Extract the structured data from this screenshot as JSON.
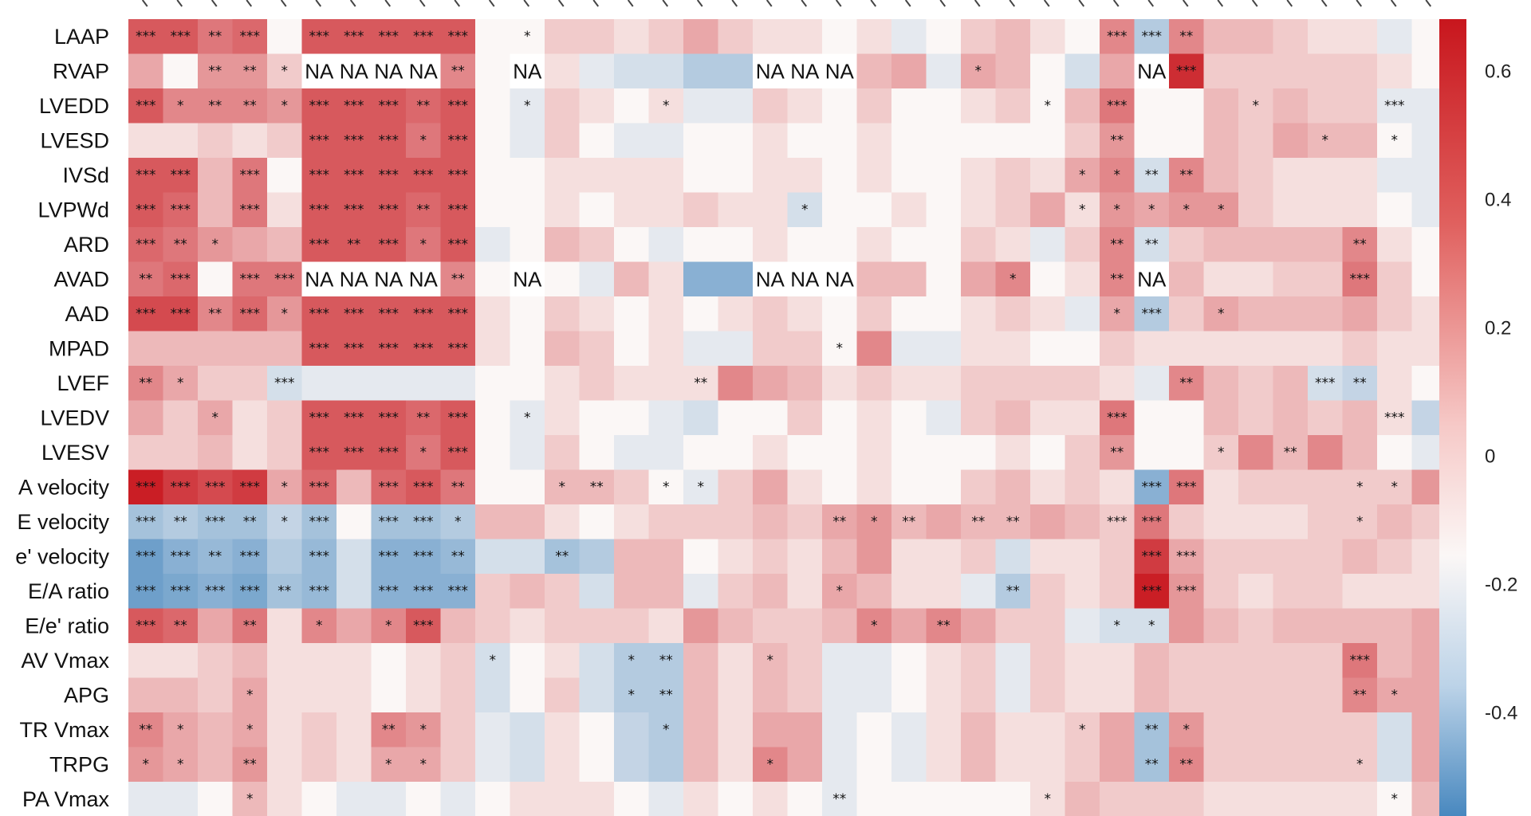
{
  "chart_data": {
    "type": "heatmap",
    "rows": [
      "LAAP",
      "RVAP",
      "LVEDD",
      "LVESD",
      "IVSd",
      "LVPWd",
      "ARD",
      "AVAD",
      "AAD",
      "MPAD",
      "LVEF",
      "LVEDV",
      "LVESV",
      "A velocity",
      "E velocity",
      "e' velocity",
      "E/A ratio",
      "E/e' ratio",
      "AV Vmax",
      "APG",
      "TR Vmax",
      "TRPG",
      "PA Vmax"
    ],
    "n_cols": 38,
    "values": [
      [
        0.45,
        0.45,
        0.35,
        0.4,
        0,
        0.45,
        0.45,
        0.45,
        0.45,
        0.45,
        0,
        0,
        0.1,
        0.1,
        0.05,
        0.1,
        0.2,
        0.1,
        0.05,
        0.05,
        0,
        0.05,
        -0.05,
        0,
        0.1,
        0.15,
        0.05,
        0,
        0.3,
        -0.2,
        0.3,
        0.15,
        0.15,
        0.1,
        0.05,
        0.05,
        -0.05,
        0
      ],
      [
        0.2,
        0,
        0.25,
        0.25,
        0.1,
        0,
        0,
        0,
        0,
        0.3,
        0,
        0,
        0.05,
        -0.05,
        -0.1,
        -0.1,
        -0.2,
        -0.2,
        0,
        0,
        0,
        0.15,
        0.2,
        -0.05,
        0.2,
        0.15,
        0,
        -0.1,
        0.2,
        0,
        0.6,
        0.1,
        0.1,
        0.1,
        0.1,
        0.1,
        0.05,
        0
      ],
      [
        0.45,
        0.3,
        0.3,
        0.3,
        0.25,
        0.45,
        0.45,
        0.45,
        0.4,
        0.45,
        0,
        -0.05,
        0.1,
        0.05,
        0,
        0.05,
        -0.05,
        -0.05,
        0.1,
        0.05,
        0,
        0.1,
        0,
        0,
        0.05,
        0.1,
        0,
        0.15,
        0.35,
        0,
        0,
        0.15,
        0.1,
        0.15,
        0.1,
        0.1,
        -0.05,
        -0.05
      ],
      [
        0.05,
        0.05,
        0.1,
        0.05,
        0.1,
        0.45,
        0.45,
        0.45,
        0.35,
        0.45,
        0,
        -0.05,
        0.1,
        0,
        -0.05,
        -0.05,
        0,
        0,
        0.05,
        0,
        0,
        0.05,
        0,
        0,
        0,
        0,
        0,
        0.1,
        0.25,
        0,
        0,
        0.15,
        0.1,
        0.2,
        0.15,
        0.15,
        0,
        -0.05
      ],
      [
        0.45,
        0.45,
        0.15,
        0.35,
        0,
        0.45,
        0.45,
        0.45,
        0.45,
        0.45,
        0,
        0,
        0.05,
        0.05,
        0.05,
        0.05,
        0,
        0,
        0.05,
        0.05,
        0,
        0.05,
        0,
        0,
        0.05,
        0.1,
        0.05,
        0.2,
        0.3,
        -0.1,
        0.3,
        0.15,
        0.1,
        0.05,
        0.05,
        0.05,
        -0.05,
        -0.05
      ],
      [
        0.45,
        0.4,
        0.15,
        0.35,
        0.05,
        0.45,
        0.45,
        0.45,
        0.4,
        0.45,
        0,
        0,
        0.05,
        0,
        0.05,
        0.05,
        0.1,
        0.05,
        0.05,
        -0.1,
        0,
        0,
        0.05,
        0,
        0.05,
        0.1,
        0.2,
        0.05,
        0.25,
        0.2,
        0.25,
        0.25,
        0.1,
        0.05,
        0.05,
        0.05,
        0,
        -0.05
      ],
      [
        0.4,
        0.35,
        0.25,
        0.2,
        0.15,
        0.45,
        0.45,
        0.45,
        0.35,
        0.45,
        -0.05,
        0,
        0.15,
        0.1,
        0,
        -0.05,
        0,
        0,
        0.05,
        0,
        0,
        0.05,
        0,
        0,
        0.1,
        0.05,
        -0.05,
        0.1,
        0.3,
        -0.1,
        0.1,
        0.15,
        0.15,
        0.15,
        0.15,
        0.3,
        0.05,
        0
      ],
      [
        0.35,
        0.4,
        0,
        0.35,
        0.35,
        0,
        0,
        0,
        0,
        0.3,
        0,
        0,
        0,
        -0.05,
        0.15,
        0.05,
        -0.35,
        -0.35,
        0,
        0,
        0,
        0.15,
        0.15,
        0,
        0.2,
        0.3,
        0,
        0.05,
        0.3,
        0,
        0.15,
        0.05,
        0.05,
        0.1,
        0.1,
        0.35,
        0.1,
        0
      ],
      [
        0.5,
        0.5,
        0.3,
        0.4,
        0.25,
        0.45,
        0.45,
        0.45,
        0.45,
        0.45,
        0.05,
        0,
        0.1,
        0.05,
        0,
        0.05,
        0,
        0.05,
        0.1,
        0.05,
        0,
        0.1,
        0,
        0,
        0.05,
        0.1,
        0.05,
        -0.05,
        0.2,
        -0.2,
        0.1,
        0.2,
        0.15,
        0.15,
        0.15,
        0.2,
        0.1,
        0.05
      ],
      [
        0.15,
        0.15,
        0.15,
        0.15,
        0.15,
        0.45,
        0.45,
        0.45,
        0.45,
        0.45,
        0.05,
        0,
        0.15,
        0.1,
        0,
        0.05,
        -0.05,
        -0.05,
        0.1,
        0.1,
        0,
        0.3,
        -0.05,
        -0.05,
        0.05,
        0.05,
        0,
        0,
        0.1,
        0.05,
        0.05,
        0.05,
        0.05,
        0.05,
        0.05,
        0.1,
        0.05,
        0.05
      ],
      [
        0.3,
        0.2,
        0.1,
        0.1,
        -0.1,
        -0.05,
        -0.05,
        -0.05,
        -0.05,
        -0.05,
        0,
        0,
        0.05,
        0.1,
        0.05,
        0.05,
        0.05,
        0.3,
        0.2,
        0.15,
        0.05,
        0.1,
        0.05,
        0.05,
        0.1,
        0.1,
        0.1,
        0.1,
        0.05,
        -0.05,
        0.3,
        0.15,
        0.1,
        0.15,
        -0.1,
        -0.15,
        0.05,
        0
      ],
      [
        0.2,
        0.1,
        0.2,
        0.05,
        0.1,
        0.45,
        0.45,
        0.45,
        0.4,
        0.45,
        0,
        -0.05,
        0.05,
        0,
        0,
        -0.05,
        -0.1,
        0,
        0,
        0.1,
        0,
        0.05,
        0,
        -0.05,
        0.1,
        0.15,
        0.05,
        0.05,
        0.35,
        0,
        0,
        0.15,
        0.1,
        0.15,
        0.1,
        0.15,
        0.05,
        -0.15
      ],
      [
        0.1,
        0.1,
        0.15,
        0.05,
        0.1,
        0.45,
        0.45,
        0.45,
        0.35,
        0.45,
        0,
        -0.05,
        0.1,
        0,
        -0.05,
        -0.05,
        0,
        0,
        0.05,
        0,
        0,
        0.05,
        0,
        0,
        0,
        0.05,
        0,
        0.1,
        0.25,
        0,
        0,
        0.1,
        0.3,
        0.15,
        0.3,
        0.15,
        0,
        -0.05
      ],
      [
        0.65,
        0.55,
        0.5,
        0.55,
        0.2,
        0.4,
        0.15,
        0.4,
        0.45,
        0.35,
        0,
        0,
        0.15,
        0.15,
        0.1,
        0,
        -0.05,
        0.1,
        0.2,
        0.05,
        0,
        0.05,
        0,
        0,
        0.1,
        0.15,
        0.05,
        0.1,
        0.05,
        -0.35,
        0.35,
        0.05,
        0.1,
        0.1,
        0.1,
        0.1,
        0.1,
        0.25
      ],
      [
        -0.25,
        -0.2,
        -0.25,
        -0.25,
        -0.15,
        -0.25,
        0,
        -0.25,
        -0.25,
        -0.2,
        0.15,
        0.15,
        0.05,
        0,
        0.05,
        0.1,
        0.1,
        0.1,
        0.15,
        0.1,
        0.2,
        0.25,
        0.15,
        0.2,
        0.15,
        0.15,
        0.2,
        0.15,
        0.1,
        0.35,
        0.1,
        0.05,
        0.05,
        0.05,
        0.1,
        0.1,
        0.15,
        0.1
      ],
      [
        -0.45,
        -0.35,
        -0.3,
        -0.35,
        -0.2,
        -0.3,
        -0.1,
        -0.35,
        -0.35,
        -0.3,
        -0.1,
        -0.1,
        -0.25,
        -0.2,
        0.15,
        0.15,
        0,
        0.05,
        0.1,
        0.05,
        0.15,
        0.25,
        0.05,
        0.05,
        0.1,
        -0.1,
        0.05,
        0.05,
        0.1,
        0.55,
        0.2,
        0.1,
        0.1,
        0.1,
        0.1,
        0.15,
        0.1,
        0.05
      ],
      [
        -0.45,
        -0.4,
        -0.35,
        -0.4,
        -0.25,
        -0.3,
        -0.1,
        -0.35,
        -0.35,
        -0.35,
        0.1,
        0.15,
        0.1,
        -0.1,
        0.15,
        0.15,
        -0.05,
        0.1,
        0.15,
        0.05,
        0.2,
        0.15,
        0.05,
        0.05,
        -0.05,
        -0.2,
        0.1,
        0.05,
        0.1,
        0.65,
        0.25,
        0.1,
        0.05,
        0.1,
        0.1,
        0.05,
        0.05,
        0.05
      ],
      [
        0.45,
        0.4,
        0.2,
        0.35,
        0.05,
        0.3,
        0.2,
        0.3,
        0.45,
        0.15,
        0.1,
        0.05,
        0.1,
        0.1,
        0.1,
        0.05,
        0.25,
        0.15,
        0.1,
        0.1,
        0.15,
        0.3,
        0.2,
        0.3,
        0.2,
        0.1,
        0.1,
        -0.05,
        -0.1,
        -0.1,
        0.25,
        0.15,
        0.1,
        0.15,
        0.15,
        0.15,
        0.15,
        0.2
      ],
      [
        0.05,
        0.05,
        0.1,
        0.15,
        0.05,
        0.05,
        0.05,
        0,
        0.05,
        0.1,
        -0.1,
        0,
        0.05,
        -0.1,
        -0.2,
        -0.2,
        0.15,
        0.05,
        0.15,
        0.1,
        -0.05,
        -0.05,
        0,
        0.05,
        0.1,
        -0.05,
        0.1,
        0.05,
        0.05,
        0.15,
        0.1,
        0.1,
        0.1,
        0.1,
        0.1,
        0.35,
        0.15,
        0.2
      ],
      [
        0.15,
        0.15,
        0.1,
        0.2,
        0.05,
        0.05,
        0.05,
        0,
        0.05,
        0.1,
        -0.1,
        0,
        0.1,
        -0.1,
        -0.2,
        -0.2,
        0.15,
        0.05,
        0.15,
        0.1,
        -0.05,
        -0.05,
        0,
        0.05,
        0.1,
        -0.05,
        0.1,
        0.05,
        0.05,
        0.15,
        0.1,
        0.1,
        0.1,
        0.1,
        0.1,
        0.3,
        0.2,
        0.2
      ],
      [
        0.3,
        0.2,
        0.15,
        0.2,
        0.05,
        0.1,
        0.05,
        0.3,
        0.25,
        0.1,
        -0.05,
        -0.1,
        0.05,
        0,
        -0.15,
        -0.2,
        0.15,
        0.05,
        0.2,
        0.2,
        -0.05,
        0,
        -0.05,
        0.05,
        0.15,
        0.05,
        0.05,
        0.1,
        0.2,
        -0.25,
        0.25,
        0.1,
        0.1,
        0.1,
        0.1,
        0.1,
        -0.1,
        0.2
      ],
      [
        0.25,
        0.2,
        0.15,
        0.25,
        0.05,
        0.1,
        0.05,
        0.2,
        0.2,
        0.1,
        -0.05,
        -0.1,
        0.05,
        0,
        -0.15,
        -0.2,
        0.15,
        0.05,
        0.3,
        0.2,
        -0.05,
        0,
        -0.05,
        0.05,
        0.15,
        0.05,
        0.05,
        0.1,
        0.2,
        -0.25,
        0.3,
        0.1,
        0.1,
        0.1,
        0.1,
        0.1,
        -0.1,
        0.2
      ],
      [
        -0.05,
        -0.05,
        0,
        0.15,
        0.05,
        0,
        -0.05,
        -0.05,
        0,
        -0.05,
        0,
        0.05,
        0.05,
        0.05,
        0,
        -0.05,
        0.05,
        0,
        0.05,
        0,
        -0.05,
        0,
        0,
        0,
        0,
        0,
        0.05,
        0.15,
        0.1,
        0.1,
        0.1,
        0.05,
        0.05,
        0.05,
        0.05,
        0.05,
        0,
        0.15
      ]
    ],
    "annotations": {
      "0": {
        "0": "***",
        "1": "***",
        "2": "**",
        "3": "***",
        "5": "***",
        "6": "***",
        "7": "***",
        "8": "***",
        "9": "***",
        "11": "*",
        "28": "***",
        "29": "***",
        "30": "**"
      },
      "1": {
        "2": "**",
        "3": "**",
        "4": "*",
        "5": "NA",
        "6": "NA",
        "7": "NA",
        "8": "NA",
        "9": "**",
        "11": "NA",
        "18": "NA",
        "19": "NA",
        "20": "NA",
        "24": "*",
        "29": "NA",
        "30": "***"
      },
      "2": {
        "0": "***",
        "1": "*",
        "2": "**",
        "3": "**",
        "4": "*",
        "5": "***",
        "6": "***",
        "7": "***",
        "8": "**",
        "9": "***",
        "11": "*",
        "15": "*",
        "26": "*",
        "28": "***",
        "32": "*",
        "36": "***"
      },
      "3": {
        "5": "***",
        "6": "***",
        "7": "***",
        "8": "*",
        "9": "***",
        "28": "**",
        "34": "*",
        "36": "*"
      },
      "4": {
        "0": "***",
        "1": "***",
        "3": "***",
        "5": "***",
        "6": "***",
        "7": "***",
        "8": "***",
        "9": "***",
        "27": "*",
        "28": "*",
        "29": "**",
        "30": "**"
      },
      "5": {
        "0": "***",
        "1": "***",
        "3": "***",
        "5": "***",
        "6": "***",
        "7": "***",
        "8": "**",
        "9": "***",
        "19": "*",
        "27": "*",
        "28": "*",
        "29": "*",
        "30": "*",
        "31": "*"
      },
      "6": {
        "0": "***",
        "1": "**",
        "2": "*",
        "5": "***",
        "6": "**",
        "7": "***",
        "8": "*",
        "9": "***",
        "28": "**",
        "29": "**",
        "35": "**"
      },
      "7": {
        "0": "**",
        "1": "***",
        "3": "***",
        "4": "***",
        "5": "NA",
        "6": "NA",
        "7": "NA",
        "8": "NA",
        "9": "**",
        "11": "NA",
        "18": "NA",
        "19": "NA",
        "20": "NA",
        "25": "*",
        "28": "**",
        "29": "NA",
        "35": "***"
      },
      "8": {
        "0": "***",
        "1": "***",
        "2": "**",
        "3": "***",
        "4": "*",
        "5": "***",
        "6": "***",
        "7": "***",
        "8": "***",
        "9": "***",
        "28": "*",
        "29": "***",
        "31": "*"
      },
      "9": {
        "5": "***",
        "6": "***",
        "7": "***",
        "8": "***",
        "9": "***",
        "20": "*"
      },
      "10": {
        "0": "**",
        "1": "*",
        "4": "***",
        "16": "**",
        "30": "**",
        "34": "***",
        "35": "**"
      },
      "11": {
        "2": "*",
        "5": "***",
        "6": "***",
        "7": "***",
        "8": "**",
        "9": "***",
        "11": "*",
        "28": "***",
        "36": "***"
      },
      "12": {
        "5": "***",
        "6": "***",
        "7": "***",
        "8": "*",
        "9": "***",
        "28": "**",
        "31": "*",
        "33": "**"
      },
      "13": {
        "0": "***",
        "1": "***",
        "2": "***",
        "3": "***",
        "4": "*",
        "5": "***",
        "7": "***",
        "8": "***",
        "9": "**",
        "12": "*",
        "13": "**",
        "15": "*",
        "16": "*",
        "29": "***",
        "30": "***",
        "35": "*",
        "36": "*"
      },
      "14": {
        "0": "***",
        "1": "**",
        "2": "***",
        "3": "**",
        "4": "*",
        "5": "***",
        "7": "***",
        "8": "***",
        "9": "*",
        "20": "**",
        "21": "*",
        "22": "**",
        "24": "**",
        "25": "**",
        "28": "***",
        "29": "***",
        "35": "*"
      },
      "15": {
        "0": "***",
        "1": "***",
        "2": "**",
        "3": "***",
        "5": "***",
        "7": "***",
        "8": "***",
        "9": "**",
        "12": "**",
        "29": "***",
        "30": "***"
      },
      "16": {
        "0": "***",
        "1": "***",
        "2": "***",
        "3": "***",
        "4": "**",
        "5": "***",
        "7": "***",
        "8": "***",
        "9": "***",
        "20": "*",
        "25": "**",
        "29": "***",
        "30": "***"
      },
      "17": {
        "0": "***",
        "1": "**",
        "3": "**",
        "5": "*",
        "7": "*",
        "8": "***",
        "21": "*",
        "23": "**",
        "28": "*",
        "29": "*"
      },
      "18": {
        "10": "*",
        "14": "*",
        "15": "**",
        "18": "*",
        "35": "***"
      },
      "19": {
        "3": "*",
        "14": "*",
        "15": "**",
        "35": "**",
        "36": "*"
      },
      "20": {
        "0": "**",
        "1": "*",
        "3": "*",
        "7": "**",
        "8": "*",
        "15": "*",
        "27": "*",
        "29": "**",
        "30": "*"
      },
      "21": {
        "0": "*",
        "1": "*",
        "3": "**",
        "7": "*",
        "8": "*",
        "18": "*",
        "29": "**",
        "30": "**",
        "35": "*"
      },
      "22": {
        "3": "*",
        "20": "**",
        "26": "*",
        "36": "*"
      }
    },
    "colorbar": {
      "ticks": [
        "0.6",
        "0.4",
        "0.2",
        "0",
        "-0.2",
        "-0.4"
      ],
      "tick_values": [
        0.6,
        0.4,
        0.2,
        0,
        -0.2,
        -0.4
      ],
      "range": [
        -0.65,
        0.68
      ],
      "colors": {
        "high": "#c8161d",
        "mid": "#fbf7f6",
        "low": "#3a7fba"
      }
    }
  }
}
